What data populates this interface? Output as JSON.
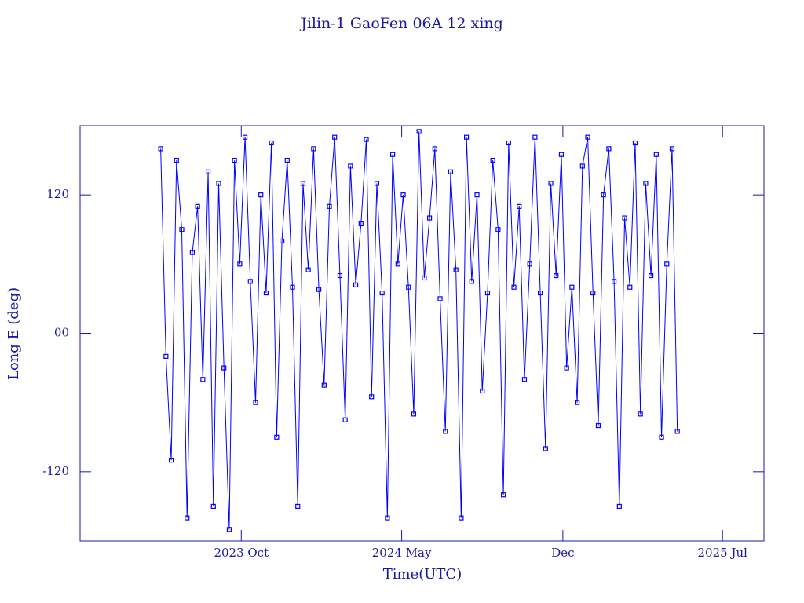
{
  "chart_data": {
    "type": "line",
    "title": "Jilin-1 GaoFen 06A 12 xing",
    "x_label": "Time(UTC)",
    "y_label": "Long E (deg)",
    "xlim": [
      "2023-03-01",
      "2025-08-25"
    ],
    "xticks": [
      {
        "value": "2023-10-01",
        "label": "2023 Oct"
      },
      {
        "value": "2024-05-01",
        "label": "2024 May"
      },
      {
        "value": "2024-12-01",
        "label": "Dec"
      },
      {
        "value": "2025-07-01",
        "label": "2025 Jul"
      }
    ],
    "ylim": [
      -180,
      180
    ],
    "yticks": [
      {
        "value": -120,
        "label": "-120"
      },
      {
        "value": 0,
        "label": "00"
      },
      120
    ],
    "grid": false,
    "color": "#0000ff",
    "x": [
      "2023-06-16",
      "2023-06-23",
      "2023-06-30",
      "2023-07-07",
      "2023-07-14",
      "2023-07-21",
      "2023-07-28",
      "2023-08-04",
      "2023-08-11",
      "2023-08-18",
      "2023-08-25",
      "2023-09-01",
      "2023-09-08",
      "2023-09-15",
      "2023-09-22",
      "2023-09-29",
      "2023-10-06",
      "2023-10-13",
      "2023-10-20",
      "2023-10-27",
      "2023-11-03",
      "2023-11-10",
      "2023-11-17",
      "2023-11-24",
      "2023-12-01",
      "2023-12-08",
      "2023-12-15",
      "2023-12-22",
      "2023-12-29",
      "2024-01-05",
      "2024-01-12",
      "2024-01-19",
      "2024-01-26",
      "2024-02-02",
      "2024-02-09",
      "2024-02-16",
      "2024-02-23",
      "2024-03-01",
      "2024-03-08",
      "2024-03-15",
      "2024-03-22",
      "2024-03-29",
      "2024-04-05",
      "2024-04-12",
      "2024-04-19",
      "2024-04-26",
      "2024-05-03",
      "2024-05-10",
      "2024-05-17",
      "2024-05-24",
      "2024-05-31",
      "2024-06-07",
      "2024-06-14",
      "2024-06-21",
      "2024-06-28",
      "2024-07-05",
      "2024-07-12",
      "2024-07-19",
      "2024-07-26",
      "2024-08-02",
      "2024-08-09",
      "2024-08-16",
      "2024-08-23",
      "2024-08-30",
      "2024-09-06",
      "2024-09-13",
      "2024-09-20",
      "2024-09-27",
      "2024-10-04",
      "2024-10-11",
      "2024-10-18",
      "2024-10-25",
      "2024-11-01",
      "2024-11-08",
      "2024-11-15",
      "2024-11-22",
      "2024-11-29",
      "2024-12-06",
      "2024-12-13",
      "2024-12-20",
      "2024-12-27",
      "2025-01-03",
      "2025-01-10",
      "2025-01-17",
      "2025-01-24",
      "2025-01-31",
      "2025-02-07",
      "2025-02-14",
      "2025-02-21",
      "2025-02-28",
      "2025-03-07",
      "2025-03-14",
      "2025-03-21",
      "2025-03-28",
      "2025-04-04",
      "2025-04-11",
      "2025-04-18",
      "2025-04-25",
      "2025-05-02"
    ],
    "values": [
      160,
      -20,
      -110,
      150,
      90,
      -160,
      70,
      110,
      -40,
      140,
      -150,
      130,
      -30,
      -170,
      150,
      60,
      170,
      45,
      -60,
      120,
      35,
      165,
      -90,
      80,
      150,
      40,
      -150,
      130,
      55,
      160,
      38,
      -45,
      110,
      170,
      50,
      -75,
      145,
      42,
      95,
      168,
      -55,
      130,
      35,
      -160,
      155,
      60,
      120,
      40,
      -70,
      175,
      48,
      100,
      160,
      30,
      -85,
      140,
      55,
      -160,
      170,
      45,
      120,
      -50,
      35,
      150,
      90,
      -140,
      165,
      40,
      110,
      -40,
      60,
      170,
      35,
      -100,
      130,
      50,
      155,
      -30,
      40,
      -60,
      145,
      170,
      35,
      -80,
      120,
      160,
      45,
      -150,
      100,
      40,
      165,
      -70,
      130,
      50,
      155,
      -90,
      60,
      160,
      -85
    ]
  }
}
